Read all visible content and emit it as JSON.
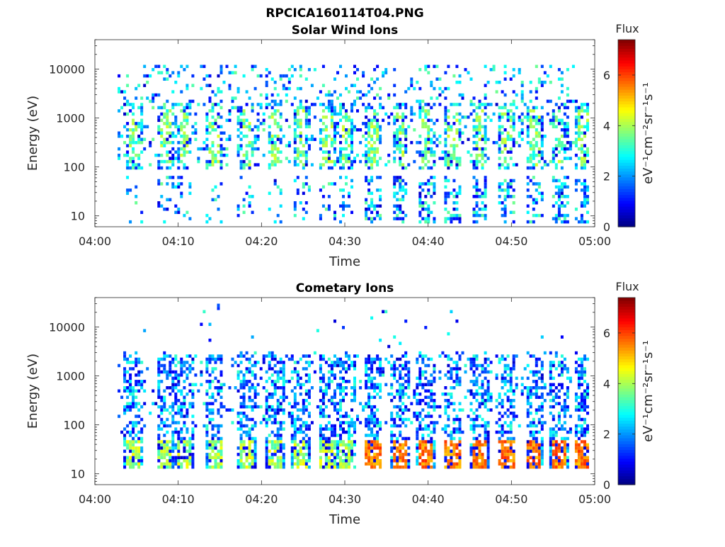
{
  "figure": {
    "title": "RPCICA160114T04.PNG"
  },
  "colorbar_stops": [
    "#00007f",
    "#0000ff",
    "#007fff",
    "#00ffff",
    "#7fff7f",
    "#ffff00",
    "#ff7f00",
    "#ff0000",
    "#7f0000"
  ],
  "chart_data": [
    {
      "type": "heatmap",
      "title": "Solar Wind Ions",
      "xlabel": "Time",
      "ylabel": "Energy (eV)",
      "x_ticks": [
        "04:00",
        "04:10",
        "04:20",
        "04:30",
        "04:40",
        "04:50",
        "05:00"
      ],
      "x_range_minutes": [
        0,
        60
      ],
      "y_scale": "log",
      "y_ticks": [
        10,
        100,
        1000,
        10000
      ],
      "y_tick_labels": [
        "10",
        "100",
        "1000",
        "10000"
      ],
      "ylim": [
        6,
        40000
      ],
      "colorbar": {
        "label": "Flux",
        "unit": "eV⁻¹cm⁻²sr⁻¹s⁻¹",
        "range": [
          0,
          7.4
        ],
        "ticks": [
          0,
          2,
          4,
          6
        ]
      },
      "bursts_start_minute": [
        4.5,
        8.3,
        10.5,
        14.2,
        18.0,
        21.5,
        24.6,
        27.8,
        30.0,
        33.2,
        36.5,
        39.6,
        42.8,
        46.0,
        49.3,
        52.6,
        55.6,
        58.5
      ],
      "background_energy_range_ev": [
        100,
        12000
      ],
      "background_flux": 2.3,
      "burst_peak_flux": 3.6,
      "grid": false
    },
    {
      "type": "heatmap",
      "title": "Cometary Ions",
      "xlabel": "Time",
      "ylabel": "Energy (eV)",
      "x_ticks": [
        "04:00",
        "04:10",
        "04:20",
        "04:30",
        "04:40",
        "04:50",
        "05:00"
      ],
      "x_range_minutes": [
        0,
        60
      ],
      "y_scale": "log",
      "y_ticks": [
        10,
        100,
        1000,
        10000
      ],
      "y_tick_labels": [
        "10",
        "100",
        "1000",
        "10000"
      ],
      "ylim": [
        6,
        40000
      ],
      "colorbar": {
        "label": "Flux",
        "unit": "eV⁻¹cm⁻²sr⁻¹s⁻¹",
        "range": [
          0,
          7.4
        ],
        "ticks": [
          0,
          2,
          4,
          6
        ]
      },
      "bursts_start_minute": [
        4.5,
        8.3,
        10.5,
        14.2,
        18.0,
        21.5,
        24.6,
        27.8,
        30.0,
        33.2,
        36.5,
        39.6,
        42.8,
        46.0,
        49.3,
        52.6,
        55.6,
        58.5
      ],
      "hot_band_energy_ev": [
        12,
        45
      ],
      "hot_band_flux_after_0433": 5.6,
      "background_energy_range_ev": [
        60,
        3000
      ],
      "background_flux": 2.0,
      "grid": false
    }
  ]
}
